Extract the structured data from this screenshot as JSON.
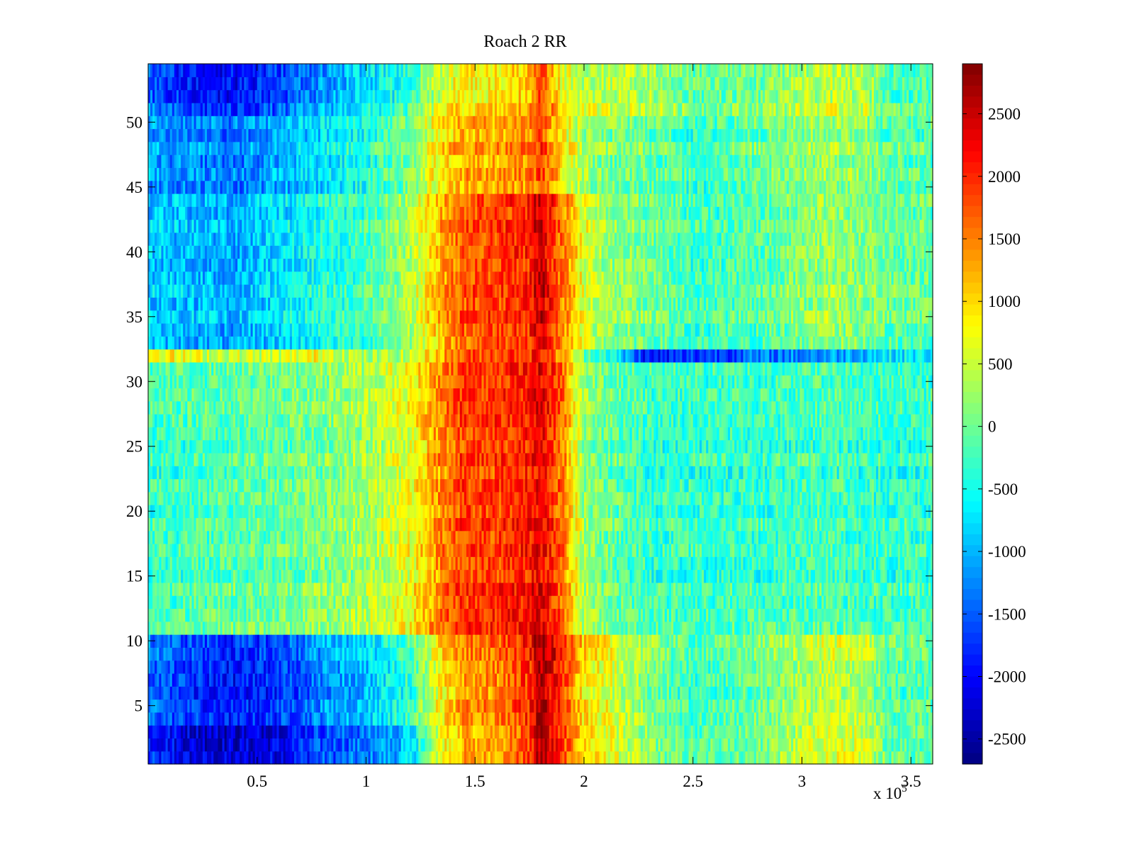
{
  "chart_data": {
    "type": "heatmap",
    "title": "Roach 2 RR",
    "xlabel": "",
    "ylabel": "",
    "x_multiplier_label": "x 10",
    "x_multiplier_exp": "5",
    "xlim": [
      0,
      3.6
    ],
    "ylim": [
      0.5,
      54.5
    ],
    "x_ticks": [
      0.5,
      1,
      1.5,
      2,
      2.5,
      3,
      3.5
    ],
    "x_tick_labels": [
      "0.5",
      "1",
      "1.5",
      "2",
      "2.5",
      "3",
      "3.5"
    ],
    "y_ticks": [
      5,
      10,
      15,
      20,
      25,
      30,
      35,
      40,
      45,
      50
    ],
    "y_tick_labels": [
      "5",
      "10",
      "15",
      "20",
      "25",
      "30",
      "35",
      "40",
      "45",
      "50"
    ],
    "rows": 54,
    "colormap": "jet",
    "clim": [
      -2700,
      2900
    ],
    "colorbar_ticks": [
      2500,
      2000,
      1500,
      1000,
      500,
      0,
      -500,
      -1000,
      -1500,
      -2000,
      -2500
    ],
    "colorbar_tick_labels": [
      "2500",
      "2000",
      "1500",
      "1000",
      "500",
      "0",
      "-500",
      "-1000",
      "-1500",
      "-2000",
      "-2500"
    ],
    "profile_x": [
      0,
      0.2,
      0.4,
      0.6,
      0.8,
      1.0,
      1.2,
      1.35,
      1.45,
      1.6,
      1.75,
      1.8,
      1.9,
      2.0,
      2.1,
      2.3,
      2.5,
      2.8,
      3.1,
      3.3,
      3.4,
      3.6
    ],
    "row_groups": [
      {
        "name": "rows 1-3",
        "rows": [
          1,
          3
        ],
        "values": [
          -1800,
          -2200,
          -2300,
          -2100,
          -1600,
          -1400,
          -900,
          800,
          1200,
          1300,
          1800,
          2600,
          1900,
          900,
          700,
          100,
          -200,
          0,
          600,
          500,
          -100,
          -100
        ]
      },
      {
        "name": "rows 4-10",
        "rows": [
          4,
          10
        ],
        "values": [
          -1400,
          -1700,
          -1900,
          -1700,
          -1200,
          -900,
          -300,
          900,
          1400,
          1500,
          2000,
          2700,
          2000,
          900,
          700,
          100,
          -300,
          0,
          500,
          400,
          -100,
          -100
        ]
      },
      {
        "name": "rows 11-31",
        "rows": [
          11,
          31
        ],
        "values": [
          -300,
          -200,
          -100,
          -50,
          100,
          300,
          700,
          1500,
          1900,
          1900,
          2100,
          2300,
          1600,
          200,
          0,
          -300,
          -300,
          -300,
          -200,
          -300,
          -300,
          -300
        ]
      },
      {
        "name": "row 32",
        "rows": [
          32,
          32
        ],
        "values": [
          1000,
          600,
          500,
          500,
          800,
          200,
          400,
          1300,
          1700,
          1900,
          2000,
          2100,
          1300,
          0,
          -300,
          -2000,
          -1700,
          -1400,
          -1200,
          -900,
          -700,
          -700
        ]
      },
      {
        "name": "rows 33-44",
        "rows": [
          33,
          44
        ],
        "values": [
          -900,
          -1000,
          -1100,
          -800,
          -500,
          -300,
          300,
          1200,
          1700,
          1800,
          2000,
          2500,
          1500,
          600,
          200,
          0,
          -300,
          -200,
          200,
          100,
          -100,
          -100
        ]
      },
      {
        "name": "rows 45-50",
        "rows": [
          45,
          50
        ],
        "values": [
          -1100,
          -1200,
          -1300,
          -1000,
          -700,
          -400,
          100,
          1000,
          1300,
          1300,
          1500,
          1900,
          900,
          300,
          100,
          0,
          -300,
          0,
          300,
          200,
          -100,
          -100
        ]
      },
      {
        "name": "rows 51-54",
        "rows": [
          51,
          54
        ],
        "values": [
          -1400,
          -1800,
          -1900,
          -1600,
          -1100,
          -700,
          -300,
          700,
          900,
          900,
          1200,
          1900,
          800,
          500,
          500,
          400,
          0,
          100,
          500,
          400,
          -100,
          -100
        ]
      }
    ],
    "noise_amplitude": 450,
    "grid": false,
    "legend": "colorbar-right"
  }
}
